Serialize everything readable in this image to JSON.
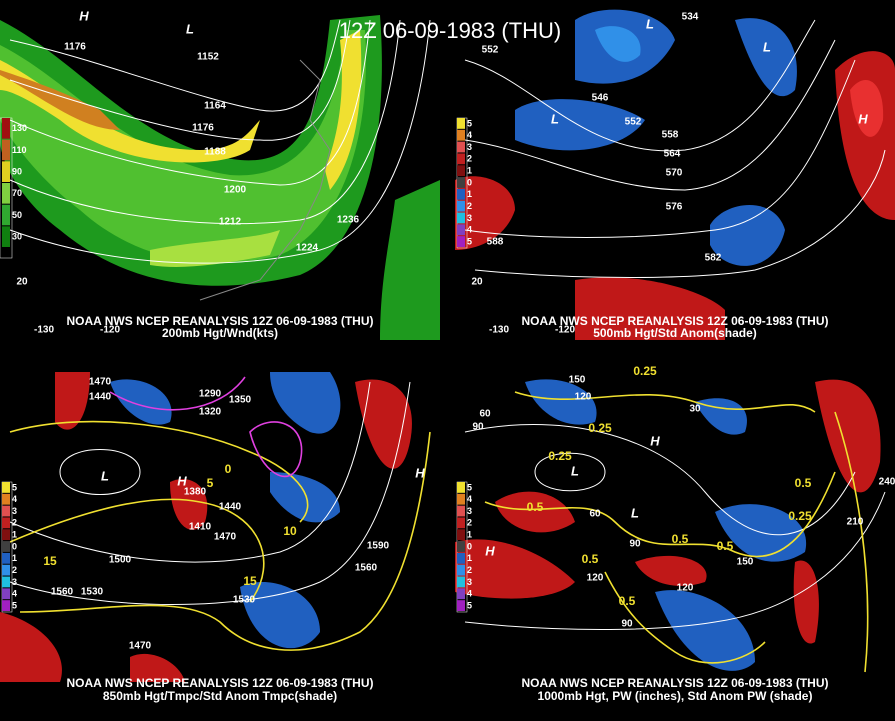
{
  "title": "12Z 06-09-1983 (THU)",
  "panels": [
    {
      "caption": "NOAA NWS NCEP REANALYSIS 12Z 06-09-1983 (THU)",
      "subtitle": "200mb Hgt/Wnd(kts)",
      "legend": [
        "130",
        "110",
        "90",
        "70",
        "50",
        "30"
      ],
      "labels": [
        "1176",
        "1152",
        "1164",
        "1176",
        "1188",
        "1200",
        "1212",
        "1224",
        "1236",
        "20",
        "-130",
        "-120",
        "H",
        "L"
      ]
    },
    {
      "caption": "NOAA NWS NCEP REANALYSIS 12Z 06-09-1983 (THU)",
      "subtitle": "500mb Hgt/Std Anom(shade)",
      "legend": [
        "5",
        "4",
        "3",
        "2",
        "1",
        "0",
        "1",
        "2",
        "3",
        "4",
        "5"
      ],
      "labels": [
        "552",
        "546",
        "552",
        "558",
        "564",
        "570",
        "576",
        "582",
        "588",
        "534",
        "L",
        "L",
        "H",
        "L",
        "20",
        "-130",
        "-120"
      ]
    },
    {
      "caption": "NOAA NWS NCEP REANALYSIS 12Z 06-09-1983 (THU)",
      "subtitle": "850mb Hgt/Tmpc/Std Anom Tmpc(shade)",
      "legend": [
        "5",
        "4",
        "3",
        "2",
        "1",
        "0",
        "1",
        "2",
        "3",
        "4",
        "5"
      ],
      "labels": [
        "1470",
        "1440",
        "1290",
        "1350",
        "1320",
        "1380",
        "1410",
        "1440",
        "1470",
        "1500",
        "1530",
        "1560",
        "1590",
        "1560",
        "1530",
        "1470",
        "L",
        "H",
        "H",
        "15",
        "15",
        "10",
        "5",
        "0"
      ]
    },
    {
      "caption": "NOAA NWS NCEP REANALYSIS 12Z 06-09-1983 (THU)",
      "subtitle": "1000mb Hgt, PW (inches), Std Anom PW (shade)",
      "legend": [
        "5",
        "4",
        "3",
        "2",
        "1",
        "0",
        "1",
        "2",
        "3",
        "4",
        "5"
      ],
      "labels": [
        "0.25",
        "0.25",
        "0.25",
        "0.5",
        "0.5",
        "0.5",
        "0.5",
        "0.25",
        "0.5",
        "0.5",
        "150",
        "120",
        "90",
        "60",
        "30",
        "90",
        "60",
        "150",
        "120",
        "120",
        "90",
        "240",
        "210",
        "L",
        "H",
        "H",
        "L"
      ]
    }
  ]
}
